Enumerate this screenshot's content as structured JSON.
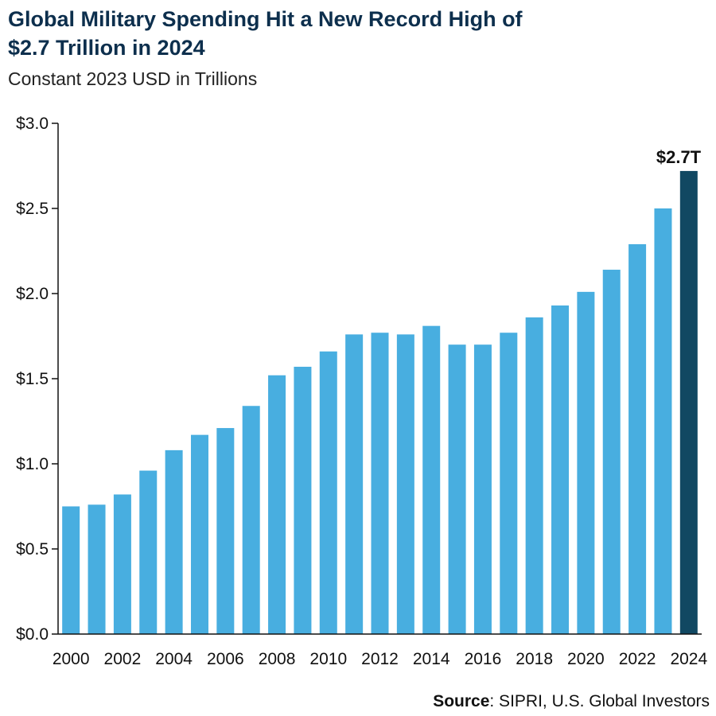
{
  "title_line1": "Global Military Spending Hit a New Record High of",
  "title_line2": "$2.7 Trillion in 2024",
  "subtitle": "Constant 2023 USD in Trillions",
  "source_label": "Source",
  "source_text": ": SIPRI, U.S. Global Investors",
  "colors": {
    "bar": "#48aee0",
    "highlight": "#114862",
    "axis": "#111111"
  },
  "chart_data": {
    "type": "bar",
    "categories": [
      "2000",
      "2001",
      "2002",
      "2003",
      "2004",
      "2005",
      "2006",
      "2007",
      "2008",
      "2009",
      "2010",
      "2011",
      "2012",
      "2013",
      "2014",
      "2015",
      "2016",
      "2017",
      "2018",
      "2019",
      "2020",
      "2021",
      "2022",
      "2023",
      "2024"
    ],
    "values": [
      0.75,
      0.76,
      0.82,
      0.96,
      1.08,
      1.17,
      1.21,
      1.34,
      1.52,
      1.57,
      1.66,
      1.76,
      1.77,
      1.76,
      1.81,
      1.7,
      1.7,
      1.77,
      1.86,
      1.93,
      2.01,
      2.14,
      2.29,
      2.5,
      2.72
    ],
    "x_tick_labels": [
      "2000",
      "2002",
      "2004",
      "2006",
      "2008",
      "2010",
      "2012",
      "2014",
      "2016",
      "2018",
      "2020",
      "2022",
      "2024"
    ],
    "y_ticks": [
      0,
      0.5,
      1.0,
      1.5,
      2.0,
      2.5,
      3.0
    ],
    "y_tick_labels": [
      "$0.0",
      "$0.5",
      "$1.0",
      "$1.5",
      "$2.0",
      "$2.5",
      "$3.0"
    ],
    "ylim": [
      0,
      3.0
    ],
    "highlight_index": 24,
    "annotation": "$2.7T",
    "grid": false,
    "legend": "none"
  }
}
